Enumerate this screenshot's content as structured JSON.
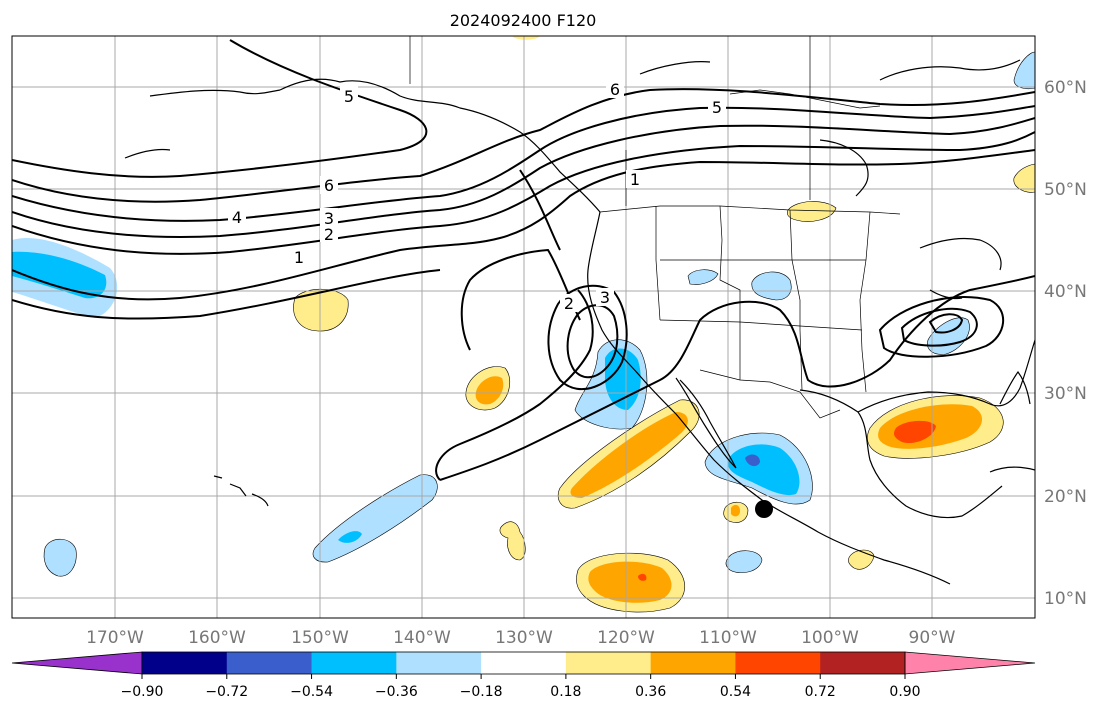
{
  "title": "2024092400 F120",
  "map": {
    "lon_ticks": [
      "170°W",
      "160°W",
      "150°W",
      "140°W",
      "130°W",
      "120°W",
      "110°W",
      "100°W",
      "90°W"
    ],
    "lat_ticks": [
      "60°N",
      "50°N",
      "40°N",
      "30°N",
      "20°N",
      "10°N"
    ],
    "grid": true,
    "contour_labels": [
      "5",
      "6",
      "5",
      "6",
      "4",
      "3",
      "2",
      "1",
      "1",
      "2",
      "3"
    ],
    "marker": "storm-position-dot"
  },
  "colorbar": {
    "ticks": [
      "−0.90",
      "−0.72",
      "−0.54",
      "−0.36",
      "−0.18",
      "0.18",
      "0.36",
      "0.54",
      "0.72",
      "0.90"
    ],
    "colors": [
      "#9932cc",
      "#00008b",
      "#3a5fcd",
      "#00bfff",
      "#b0e0ff",
      "#ffffff",
      "#ffec8b",
      "#ffa500",
      "#ff4500",
      "#b22222",
      "#ff82ab"
    ],
    "extend": "both"
  }
}
